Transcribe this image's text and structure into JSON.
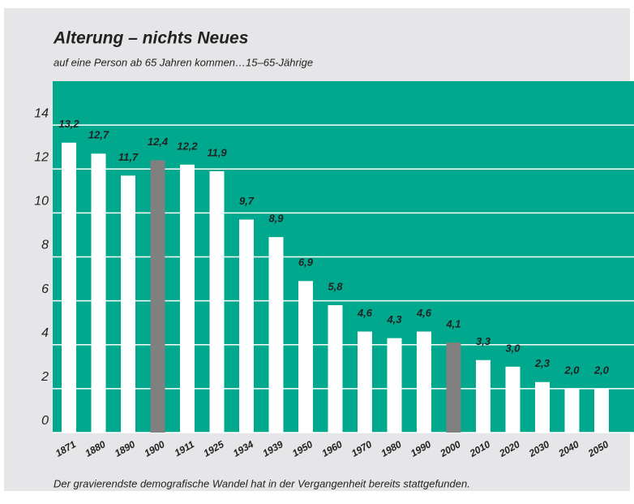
{
  "chart_data": {
    "type": "bar",
    "title": "Alterung – nichts Neues",
    "subtitle": "auf eine Person ab 65 Jahren kommen…15–65-Jährige",
    "note": "Der gravierendste demografische Wandel hat in der Vergangenheit bereits stattgefunden.",
    "categories": [
      "1871",
      "1880",
      "1890",
      "1900",
      "1911",
      "1925",
      "1934",
      "1939",
      "1950",
      "1960",
      "1970",
      "1980",
      "1990",
      "2000",
      "2010",
      "2020",
      "2030",
      "2040",
      "2050"
    ],
    "values": [
      13.2,
      12.7,
      11.7,
      12.4,
      12.2,
      11.9,
      9.7,
      8.9,
      6.9,
      5.8,
      4.6,
      4.3,
      4.6,
      4.1,
      3.3,
      3.0,
      2.3,
      2.0,
      2.0
    ],
    "value_labels": [
      "13,2",
      "12,7",
      "11,7",
      "12,4",
      "12,2",
      "11,9",
      "9,7",
      "8,9",
      "6,9",
      "5,8",
      "4,6",
      "4,3",
      "4,6",
      "4,1",
      "3,3",
      "3,0",
      "2,3",
      "2,0",
      "2,0"
    ],
    "colors": [
      "#ffffff",
      "#ffffff",
      "#ffffff",
      "#808080",
      "#ffffff",
      "#ffffff",
      "#ffffff",
      "#ffffff",
      "#ffffff",
      "#ffffff",
      "#ffffff",
      "#ffffff",
      "#ffffff",
      "#808080",
      "#ffffff",
      "#ffffff",
      "#ffffff",
      "#ffffff",
      "#ffffff"
    ],
    "plot_background": "#00a88e",
    "ylim": [
      0,
      16
    ],
    "yticks": [
      0,
      2,
      4,
      6,
      8,
      10,
      12,
      14
    ],
    "grid": true
  }
}
